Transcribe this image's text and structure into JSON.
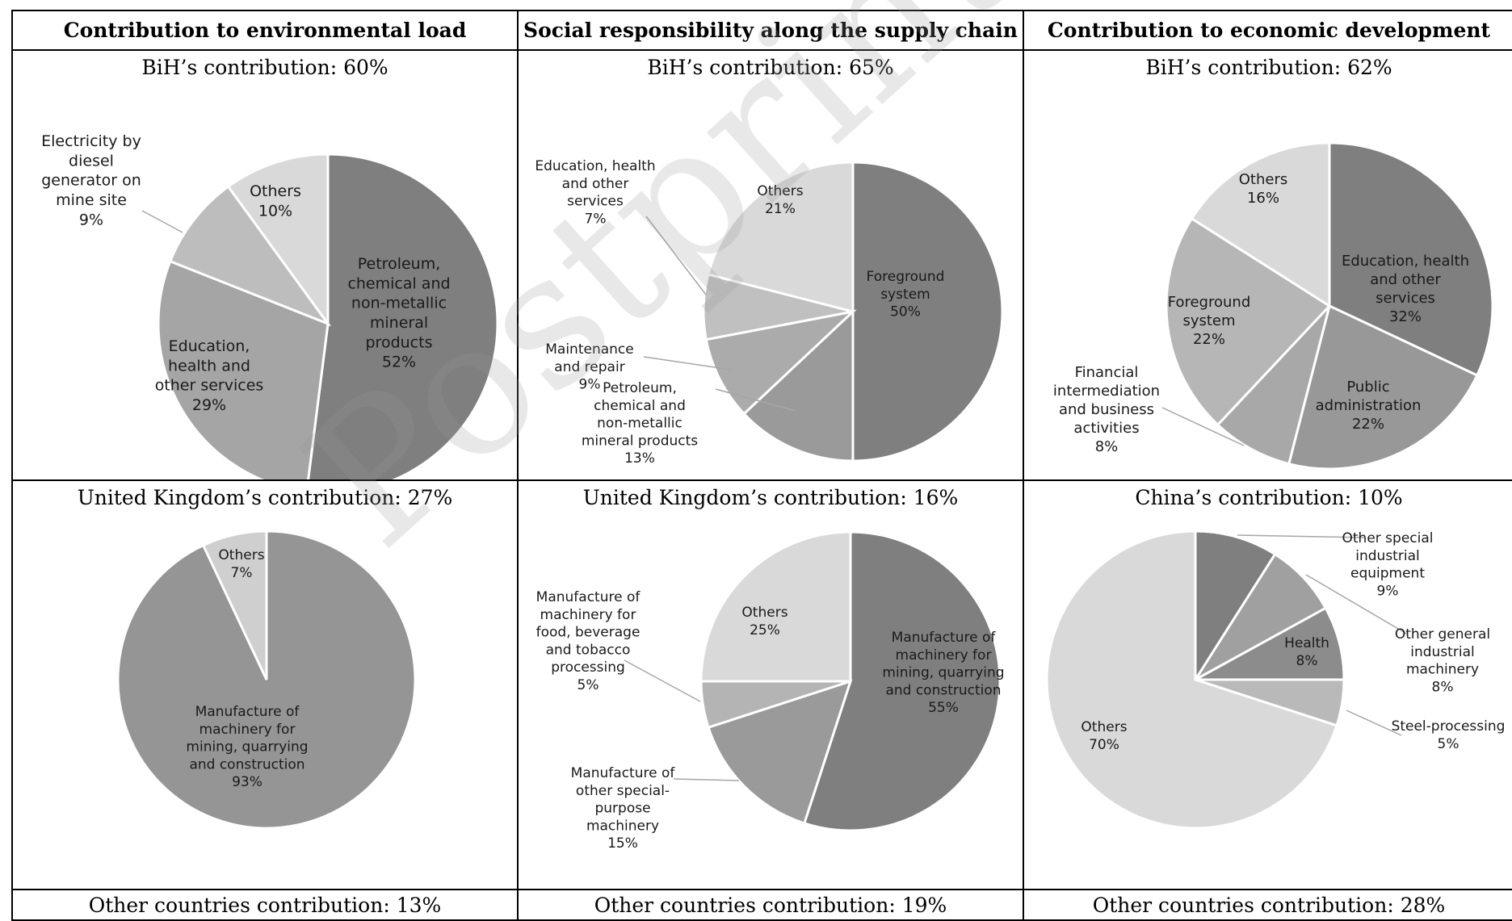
{
  "headers": [
    "Contribution to environmental load",
    "Social responsibility along the supply chain",
    "Contribution to economic development"
  ],
  "watermark": "Postprint version",
  "chart_data": [
    {
      "type": "pie",
      "title": "BiH’s contribution: 60%",
      "slices": [
        {
          "label": [
            "Petroleum,",
            "chemical and",
            "non-metallic",
            "mineral",
            "products"
          ],
          "pct": "52%",
          "value": 52,
          "color": "#7f7f7f"
        },
        {
          "label": [
            "Education,",
            "health and",
            "other services"
          ],
          "pct": "29%",
          "value": 29,
          "color": "#a5a5a5"
        },
        {
          "label": [
            "Electricity by",
            "diesel",
            "generator on",
            "mine site"
          ],
          "pct": "9%",
          "value": 9,
          "color": "#bdbdbd"
        },
        {
          "label": [
            "Others"
          ],
          "pct": "10%",
          "value": 10,
          "color": "#d9d9d9"
        }
      ]
    },
    {
      "type": "pie",
      "title": "BiH’s contribution: 65%",
      "slices": [
        {
          "label": [
            "Foreground",
            "system"
          ],
          "pct": "50%",
          "value": 50,
          "color": "#7f7f7f"
        },
        {
          "label": [
            "Petroleum,",
            "chemical and",
            "non-metallic",
            "mineral products"
          ],
          "pct": "13%",
          "value": 13,
          "color": "#9a9a9a"
        },
        {
          "label": [
            "Maintenance",
            "and repair"
          ],
          "pct": "9%",
          "value": 9,
          "color": "#ababab"
        },
        {
          "label": [
            "Education, health",
            "and other",
            "services"
          ],
          "pct": "7%",
          "value": 7,
          "color": "#c0c0c0"
        },
        {
          "label": [
            "Others"
          ],
          "pct": "21%",
          "value": 21,
          "color": "#d9d9d9"
        }
      ]
    },
    {
      "type": "pie",
      "title": "BiH’s contribution: 62%",
      "slices": [
        {
          "label": [
            "Education, health",
            "and other",
            "services"
          ],
          "pct": "32%",
          "value": 32,
          "color": "#7f7f7f"
        },
        {
          "label": [
            "Public",
            "administration"
          ],
          "pct": "22%",
          "value": 22,
          "color": "#989898"
        },
        {
          "label": [
            "Financial",
            "intermediation",
            "and business",
            "activities"
          ],
          "pct": "8%",
          "value": 8,
          "color": "#a8a8a8"
        },
        {
          "label": [
            "Foreground",
            "system"
          ],
          "pct": "22%",
          "value": 22,
          "color": "#b6b6b6"
        },
        {
          "label": [
            "Others"
          ],
          "pct": "16%",
          "value": 16,
          "color": "#d9d9d9"
        }
      ]
    },
    {
      "type": "pie",
      "title": "United Kingdom’s contribution: 27%",
      "slices": [
        {
          "label": [
            "Manufacture of",
            "machinery for",
            "mining, quarrying",
            "and construction"
          ],
          "pct": "93%",
          "value": 93,
          "color": "#959595"
        },
        {
          "label": [
            "Others"
          ],
          "pct": "7%",
          "value": 7,
          "color": "#cfcfcf"
        }
      ]
    },
    {
      "type": "pie",
      "title": "United Kingdom’s contribution: 16%",
      "slices": [
        {
          "label": [
            "Manufacture of",
            "machinery for",
            "mining, quarrying",
            "and construction"
          ],
          "pct": "55%",
          "value": 55,
          "color": "#7f7f7f"
        },
        {
          "label": [
            "Manufacture of",
            "other special-",
            "purpose",
            "machinery"
          ],
          "pct": "15%",
          "value": 15,
          "color": "#9a9a9a"
        },
        {
          "label": [
            "Manufacture of",
            "machinery for",
            "food, beverage",
            "and tobacco",
            "processing"
          ],
          "pct": "5%",
          "value": 5,
          "color": "#b4b4b4"
        },
        {
          "label": [
            "Others"
          ],
          "pct": "25%",
          "value": 25,
          "color": "#d9d9d9"
        }
      ]
    },
    {
      "type": "pie",
      "title": "China’s contribution: 10%",
      "slices": [
        {
          "label": [
            "Other special",
            "industrial",
            "equipment"
          ],
          "pct": "9%",
          "value": 9,
          "color": "#7f7f7f"
        },
        {
          "label": [
            "Other general",
            "industrial",
            "machinery"
          ],
          "pct": "8%",
          "value": 8,
          "color": "#a0a0a0"
        },
        {
          "label": [
            "Health"
          ],
          "pct": "8%",
          "value": 8,
          "color": "#8c8c8c"
        },
        {
          "label": [
            "Steel-processing"
          ],
          "pct": "5%",
          "value": 5,
          "color": "#b9b9b9"
        },
        {
          "label": [
            "Others"
          ],
          "pct": "70%",
          "value": 70,
          "color": "#d9d9d9"
        }
      ]
    }
  ],
  "footers": [
    "Other countries contribution: 13%",
    "Other countries contribution: 19%",
    "Other countries contribution: 28%"
  ]
}
